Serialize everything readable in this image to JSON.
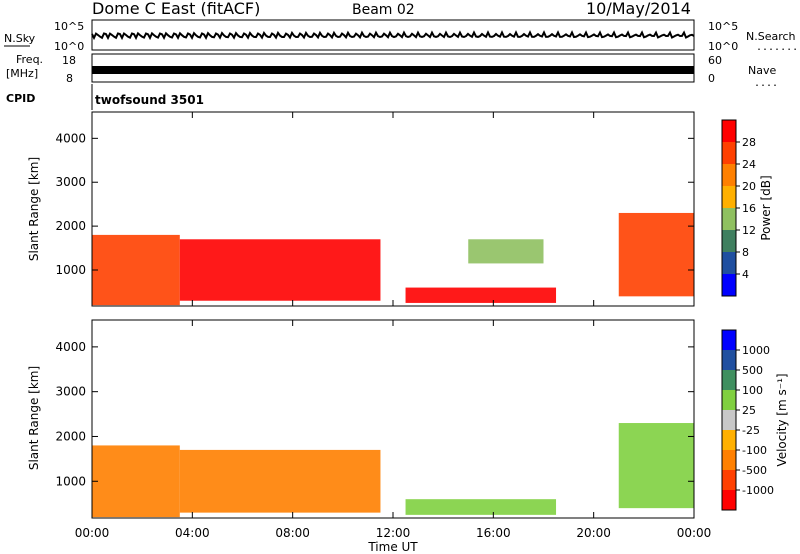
{
  "header": {
    "station": "Dome C East (fitACF)",
    "beam": "Beam 02",
    "date": "10/May/2014"
  },
  "strips": {
    "nsky": {
      "label": "N.Sky",
      "tick_top": "10^5",
      "tick_bottom": "10^0"
    },
    "nsearch": {
      "label": "N.Search",
      "tick_top": "10^5",
      "tick_bottom": "10^0",
      "dots": "........"
    },
    "freq": {
      "label_line1": "Freq.",
      "label_line2": "[MHz]",
      "tick_top": "18",
      "tick_bottom": "8"
    },
    "nave": {
      "label": "Nave",
      "tick_top": "60",
      "tick_bottom": "0",
      "dots": "...."
    },
    "cpid": {
      "label": "CPID",
      "program": "twofsound 3501"
    }
  },
  "colors": {
    "power_scale": [
      "#0000ff",
      "#1f4fa0",
      "#3f7f5f",
      "#8fc060",
      "#ffb000",
      "#ff8000",
      "#ff4000",
      "#ff0000"
    ],
    "velocity_scale": [
      "#ff0000",
      "#ff4000",
      "#ff8000",
      "#ffb000",
      "#c8c8c8",
      "#80d040",
      "#3f8f5f",
      "#2050a0",
      "#0000ff"
    ]
  },
  "chart_data": [
    {
      "type": "heatmap",
      "title": "",
      "ylabel": "Slant Range [km]",
      "xlabel": "",
      "ylim": [
        180,
        4600
      ],
      "xlim": [
        "00:00",
        "24:00"
      ],
      "y_ticks": [
        "1000",
        "2000",
        "3000",
        "4000"
      ],
      "colorbar": {
        "label": "Power [dB]",
        "ticks": [
          "4",
          "8",
          "12",
          "16",
          "20",
          "24",
          "28"
        ],
        "range": [
          0,
          30
        ]
      },
      "echo_regions": [
        {
          "t_start": 0.0,
          "t_end": 3.5,
          "range_min": 200,
          "range_max": 1800,
          "power_db": 26
        },
        {
          "t_start": 3.5,
          "t_end": 11.5,
          "range_min": 300,
          "range_max": 1700,
          "power_db": 28
        },
        {
          "t_start": 12.5,
          "t_end": 18.5,
          "range_min": 250,
          "range_max": 600,
          "power_db": 27
        },
        {
          "t_start": 15.0,
          "t_end": 18.0,
          "range_min": 1150,
          "range_max": 1700,
          "power_db": 12
        },
        {
          "t_start": 21.0,
          "t_end": 24.0,
          "range_min": 400,
          "range_max": 2300,
          "power_db": 26
        }
      ]
    },
    {
      "type": "heatmap",
      "title": "",
      "ylabel": "Slant Range [km]",
      "xlabel": "Time UT",
      "ylim": [
        180,
        4600
      ],
      "xlim": [
        "00:00",
        "24:00"
      ],
      "x_ticks": [
        "00:00",
        "04:00",
        "08:00",
        "12:00",
        "16:00",
        "20:00",
        "00:00"
      ],
      "y_ticks": [
        "1000",
        "2000",
        "3000",
        "4000"
      ],
      "colorbar": {
        "label": "Velocity [m s⁻¹]",
        "ticks": [
          "1000",
          "500",
          "100",
          "25",
          "-25",
          "-100",
          "-500",
          "-1000"
        ]
      },
      "echo_regions": [
        {
          "t_start": 0.0,
          "t_end": 3.5,
          "range_min": 200,
          "range_max": 1800,
          "velocity": -100
        },
        {
          "t_start": 3.5,
          "t_end": 11.5,
          "range_min": 300,
          "range_max": 1700,
          "velocity": -100
        },
        {
          "t_start": 12.5,
          "t_end": 18.5,
          "range_min": 250,
          "range_max": 600,
          "velocity": 100
        },
        {
          "t_start": 21.0,
          "t_end": 24.0,
          "range_min": 400,
          "range_max": 2300,
          "velocity": 100
        }
      ]
    }
  ]
}
